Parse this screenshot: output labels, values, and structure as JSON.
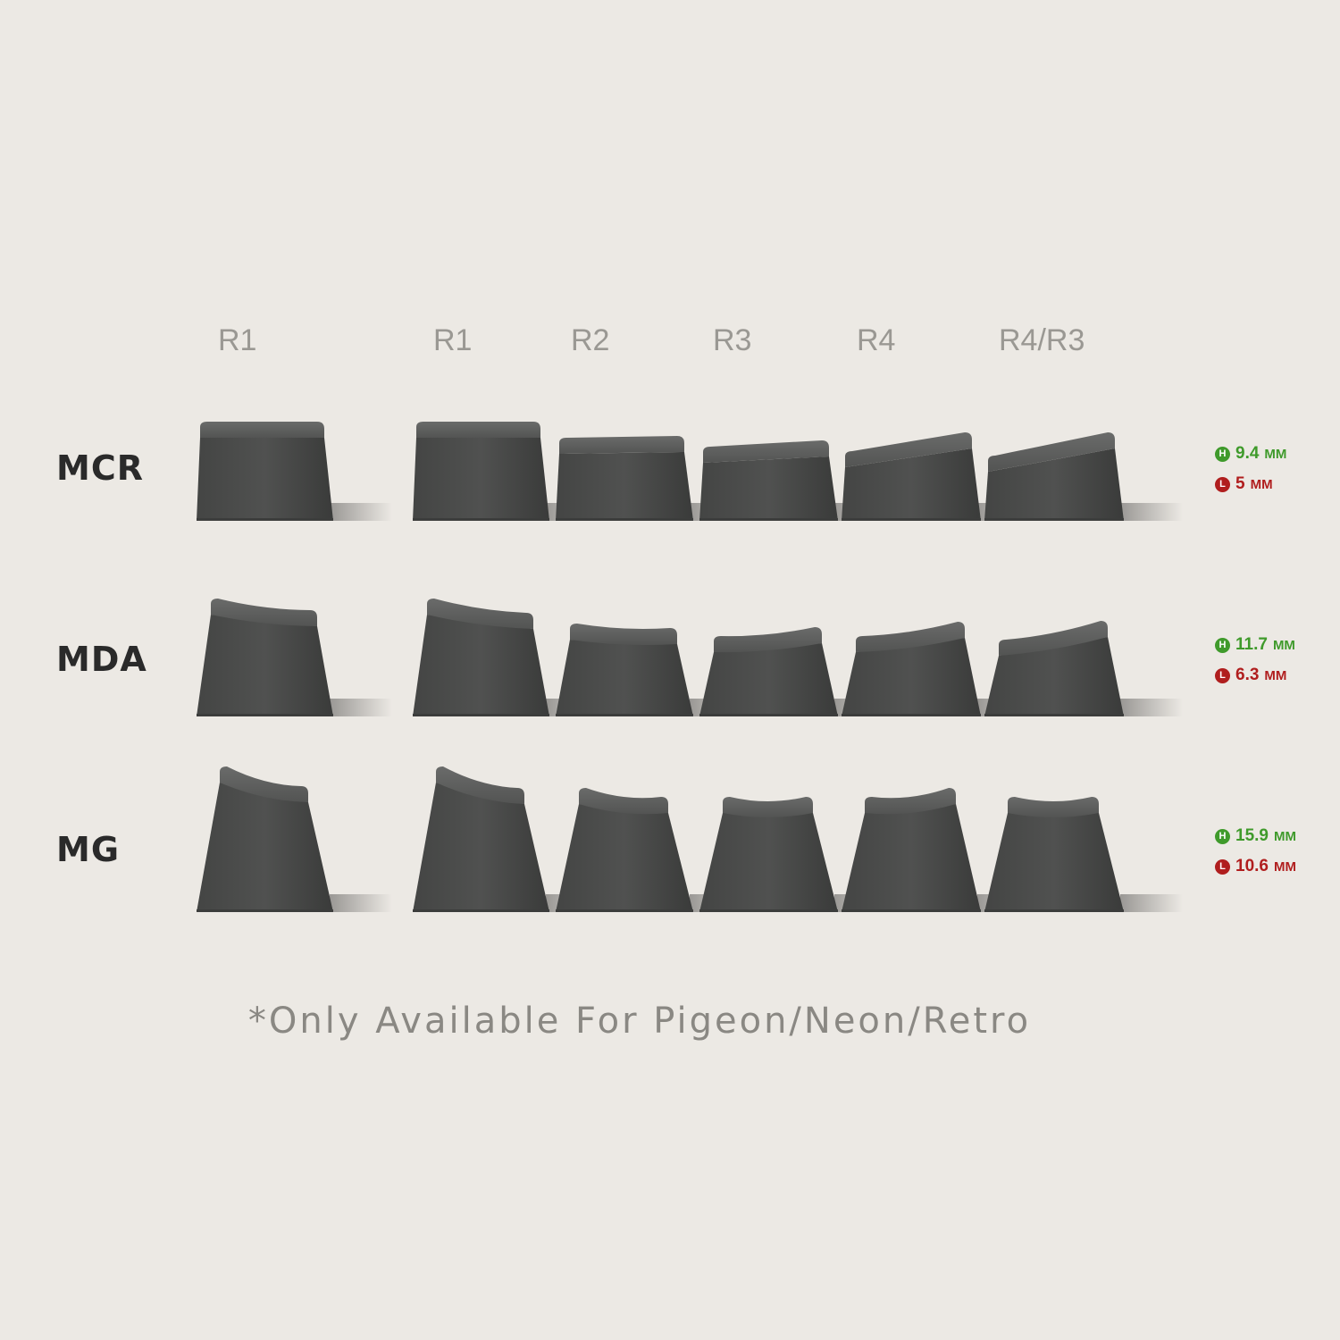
{
  "rows": [
    "R1",
    "R1",
    "R2",
    "R3",
    "R4",
    "R4/R3"
  ],
  "profiles": [
    {
      "name": "MCR",
      "height": "9.4",
      "height_unit": "MM",
      "length": "5",
      "length_unit": "MM",
      "h_badge": "H",
      "l_badge": "L"
    },
    {
      "name": "MDA",
      "height": "11.7",
      "height_unit": "MM",
      "length": "6.3",
      "length_unit": "MM",
      "h_badge": "H",
      "l_badge": "L"
    },
    {
      "name": "MG",
      "height": "15.9",
      "height_unit": "MM",
      "length": "10.6",
      "length_unit": "MM",
      "h_badge": "H",
      "l_badge": "L"
    }
  ],
  "footnote": "*Only Available For Pigeon/Neon/Retro",
  "colors": {
    "background": "#ece9e4",
    "keycap_body": "#4c4d4c",
    "keycap_top": "#5e5f5e",
    "height_accent": "#3f9a2b",
    "length_accent": "#b01e1e"
  }
}
